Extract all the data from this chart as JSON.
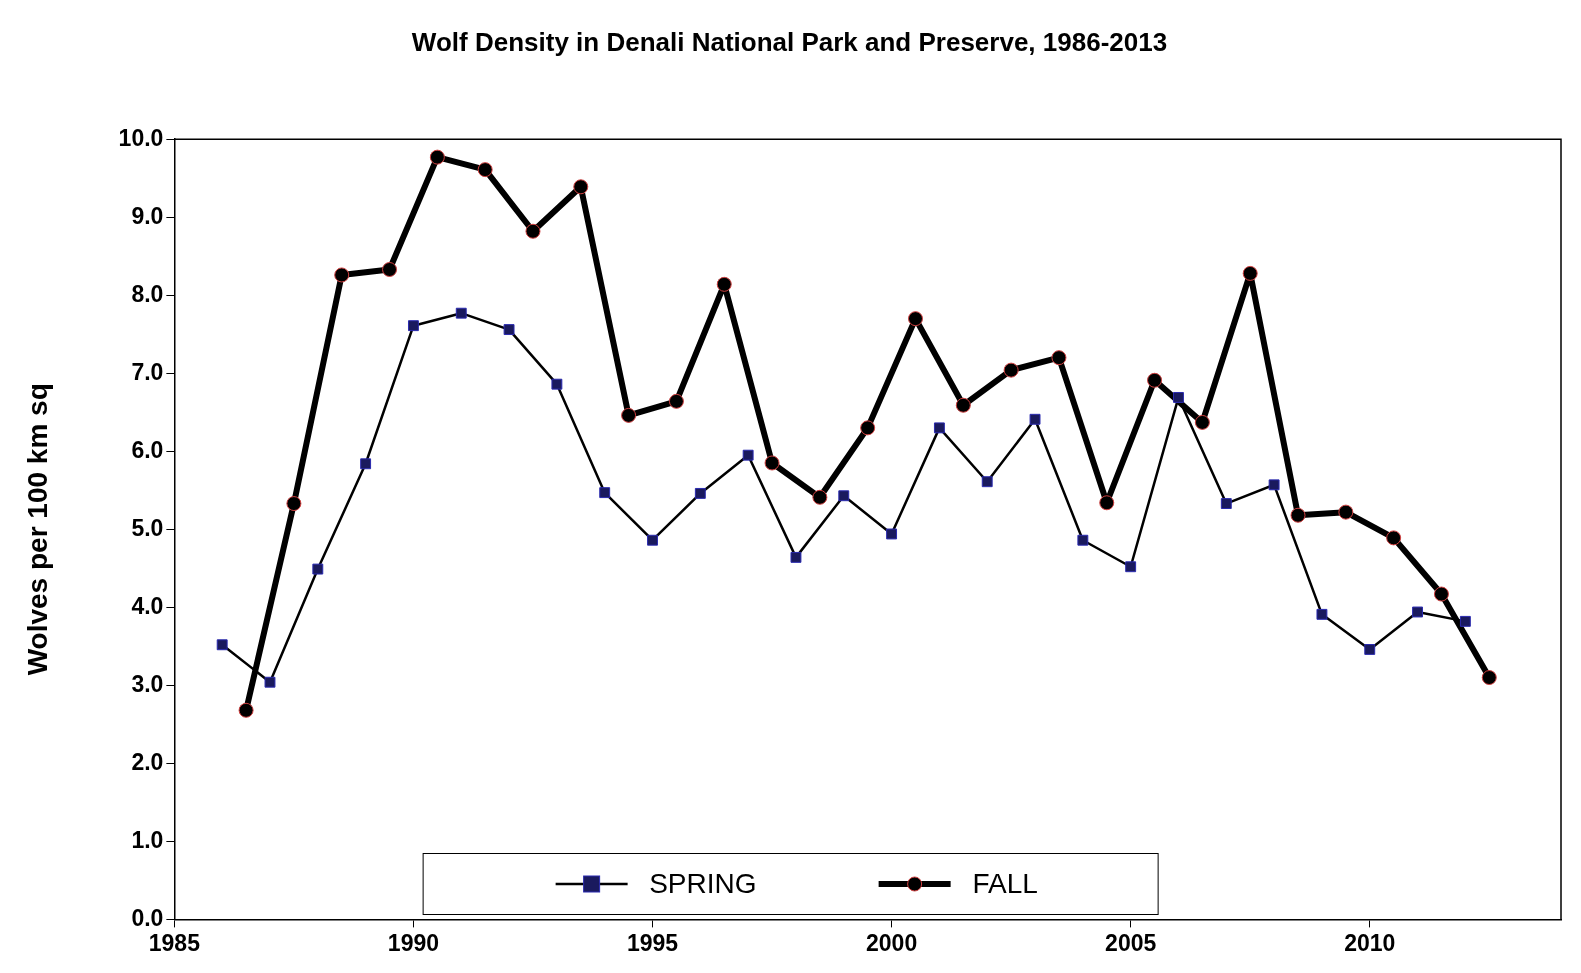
{
  "chart_data": {
    "type": "line",
    "title": "Wolf Density in Denali National Park and Preserve, 1986-2013",
    "ylabel": "Wolves per 100 km sq",
    "xlim": [
      1985,
      2014
    ],
    "xticks": [
      1985,
      1990,
      1995,
      2000,
      2005,
      2010
    ],
    "ylim": [
      0,
      10
    ],
    "yticks": [
      {
        "value": 0,
        "label": "0.0"
      },
      {
        "value": 1,
        "label": "1.0"
      },
      {
        "value": 2,
        "label": "2.0"
      },
      {
        "value": 3,
        "label": "3.0"
      },
      {
        "value": 4,
        "label": "4.0"
      },
      {
        "value": 5,
        "label": "5.0"
      },
      {
        "value": 6,
        "label": "6.0"
      },
      {
        "value": 7,
        "label": "7.0"
      },
      {
        "value": 8,
        "label": "8.0"
      },
      {
        "value": 9,
        "label": "9.0"
      },
      {
        "value": 10,
        "label": "10.0"
      }
    ],
    "grid": false,
    "legend": "bottom",
    "line_style": "solid",
    "series": [
      {
        "name": "SPRING",
        "color": "#000000",
        "marker": "square",
        "x": [
          1986,
          1987,
          1988,
          1989,
          1990,
          1991,
          1992,
          1993,
          1994,
          1995,
          1996,
          1997,
          1998,
          1999,
          2000,
          2001,
          2002,
          2003,
          2004,
          2005,
          2006,
          2007,
          2008,
          2009,
          2010,
          2011,
          2012
        ],
        "values": [
          3.52,
          3.04,
          4.49,
          5.84,
          7.61,
          7.77,
          7.56,
          6.86,
          5.47,
          4.86,
          5.46,
          5.95,
          4.64,
          5.43,
          4.94,
          6.3,
          5.61,
          6.41,
          4.86,
          4.52,
          6.69,
          5.33,
          5.57,
          3.91,
          3.46,
          3.94,
          3.82
        ]
      },
      {
        "name": "FALL",
        "color": "#000000",
        "marker": "circle",
        "x": [
          1986.5,
          1987.5,
          1988.5,
          1989.5,
          1990.5,
          1991.5,
          1992.5,
          1993.5,
          1994.5,
          1995.5,
          1996.5,
          1997.5,
          1998.5,
          1999.5,
          2000.5,
          2001.5,
          2002.5,
          2003.5,
          2004.5,
          2005.5,
          2006.5,
          2007.5,
          2008.5,
          2009.5,
          2010.5,
          2011.5,
          2012.5
        ],
        "values": [
          2.68,
          5.33,
          8.26,
          8.33,
          9.77,
          9.61,
          8.82,
          9.39,
          6.46,
          6.64,
          8.14,
          5.85,
          5.41,
          6.3,
          7.7,
          6.59,
          7.04,
          7.2,
          5.34,
          6.91,
          6.37,
          8.28,
          5.18,
          5.22,
          4.89,
          4.17,
          3.1
        ]
      }
    ]
  }
}
